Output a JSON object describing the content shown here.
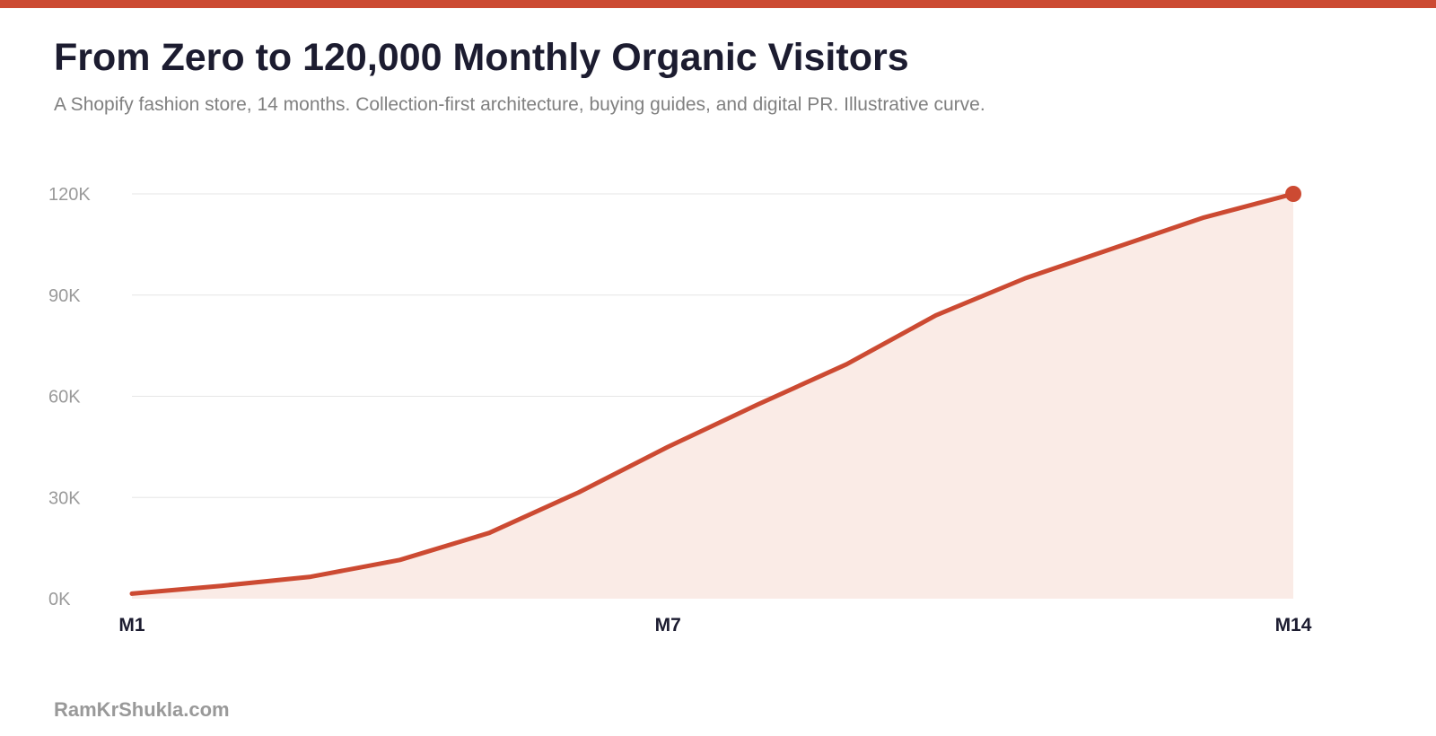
{
  "header": {
    "title": "From Zero to 120,000 Monthly Organic Visitors",
    "subtitle": "A Shopify fashion store, 14 months. Collection-first architecture, buying guides, and digital PR. Illustrative curve."
  },
  "footer": {
    "brand": "RamKrShukla.com"
  },
  "colors": {
    "accent": "#cc4a32",
    "area_fill": "#faebe6",
    "grid": "#e6e6e6",
    "title": "#1c1c30",
    "muted": "#9a9a9a"
  },
  "chart_data": {
    "type": "area",
    "title": "From Zero to 120,000 Monthly Organic Visitors",
    "subtitle": "A Shopify fashion store, 14 months. Collection-first architecture, buying guides, and digital PR. Illustrative curve.",
    "xlabel": "",
    "ylabel": "",
    "x": [
      1,
      2,
      3,
      4,
      5,
      6,
      7,
      8,
      9,
      10,
      11,
      12,
      13,
      14
    ],
    "x_tick_values": [
      1,
      7,
      14
    ],
    "x_tick_labels": [
      "M1",
      "M7",
      "M14"
    ],
    "y_ticks": [
      0,
      30000,
      60000,
      90000,
      120000
    ],
    "y_tick_labels": [
      "0K",
      "30K",
      "60K",
      "90K",
      "120K"
    ],
    "ylim": [
      0,
      120000
    ],
    "xlim": [
      1,
      14
    ],
    "grid": true,
    "legend": "none",
    "series": [
      {
        "values": [
          1500,
          3800,
          6500,
          11500,
          19500,
          31500,
          45000,
          57500,
          69500,
          84000,
          95000,
          104000,
          113000,
          120000
        ],
        "highlight_last_point": true
      }
    ]
  }
}
